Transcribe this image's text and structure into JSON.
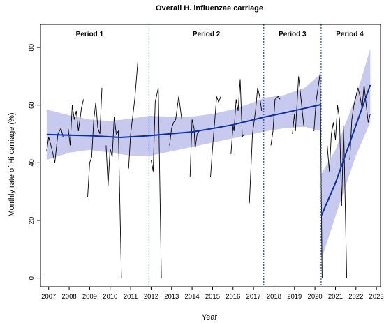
{
  "chart_data": {
    "type": "line",
    "title": "Overall H. influenzae carriage",
    "xlabel": "Year",
    "ylabel": "Monthly rate of Hi carriage (%)",
    "xlim": [
      2006.6,
      2023.2
    ],
    "ylim": [
      -3,
      88
    ],
    "x_ticks": [
      2007,
      2008,
      2009,
      2010,
      2011,
      2012,
      2013,
      2014,
      2015,
      2016,
      2017,
      2018,
      2019,
      2020,
      2021,
      2022,
      2023
    ],
    "y_ticks": [
      0,
      20,
      40,
      60,
      80
    ],
    "grid": false,
    "period_breaks": [
      2011.9,
      2017.5,
      2020.3
    ],
    "periods": [
      {
        "label": "Period 1",
        "x": 2009.0
      },
      {
        "label": "Period 2",
        "x": 2014.7
      },
      {
        "label": "Period 3",
        "x": 2018.9
      },
      {
        "label": "Period 4",
        "x": 2021.7
      }
    ],
    "observed_segments": [
      [
        [
          2006.9,
          44
        ],
        [
          2007.0,
          49
        ],
        [
          2007.15,
          45
        ],
        [
          2007.3,
          40
        ],
        [
          2007.45,
          50
        ],
        [
          2007.6,
          52
        ],
        [
          2007.7,
          49
        ]
      ],
      [
        [
          2007.95,
          52
        ],
        [
          2008.05,
          46
        ],
        [
          2008.15,
          60
        ],
        [
          2008.25,
          55
        ],
        [
          2008.35,
          58
        ],
        [
          2008.45,
          51
        ],
        [
          2008.6,
          59
        ],
        [
          2008.7,
          62
        ]
      ],
      [
        [
          2008.9,
          28
        ],
        [
          2009.0,
          40
        ],
        [
          2009.1,
          42
        ],
        [
          2009.2,
          55
        ],
        [
          2009.3,
          61
        ],
        [
          2009.4,
          52
        ],
        [
          2009.5,
          50
        ],
        [
          2009.6,
          66
        ]
      ],
      [
        [
          2009.8,
          46
        ],
        [
          2009.9,
          32
        ],
        [
          2010.0,
          45
        ],
        [
          2010.1,
          42
        ],
        [
          2010.2,
          56
        ],
        [
          2010.3,
          50
        ],
        [
          2010.4,
          51
        ],
        [
          2010.55,
          0
        ]
      ],
      [
        [
          2010.9,
          38
        ],
        [
          2011.0,
          50
        ],
        [
          2011.2,
          62
        ],
        [
          2011.35,
          75
        ]
      ],
      [
        [
          2012.0,
          41
        ],
        [
          2012.1,
          37
        ],
        [
          2012.2,
          61
        ],
        [
          2012.35,
          66
        ],
        [
          2012.5,
          0
        ]
      ],
      [
        [
          2012.9,
          46
        ],
        [
          2013.0,
          52
        ],
        [
          2013.1,
          54
        ],
        [
          2013.2,
          55
        ],
        [
          2013.35,
          63
        ],
        [
          2013.5,
          55
        ]
      ],
      [
        [
          2013.9,
          35
        ],
        [
          2014.0,
          55
        ],
        [
          2014.1,
          52
        ],
        [
          2014.15,
          45
        ],
        [
          2014.25,
          50
        ],
        [
          2014.35,
          51
        ]
      ],
      [
        [
          2014.9,
          35
        ],
        [
          2015.0,
          45
        ],
        [
          2015.1,
          54
        ],
        [
          2015.2,
          63
        ],
        [
          2015.3,
          61
        ],
        [
          2015.4,
          63
        ]
      ],
      [
        [
          2015.9,
          43
        ],
        [
          2016.0,
          53
        ],
        [
          2016.05,
          51
        ],
        [
          2016.15,
          62
        ],
        [
          2016.25,
          58
        ],
        [
          2016.35,
          69
        ],
        [
          2016.45,
          49
        ],
        [
          2016.55,
          50
        ]
      ],
      [
        [
          2016.8,
          26
        ],
        [
          2016.95,
          50
        ],
        [
          2017.1,
          58
        ],
        [
          2017.2,
          66
        ],
        [
          2017.3,
          63
        ],
        [
          2017.4,
          58
        ]
      ],
      [
        [
          2017.85,
          46
        ],
        [
          2017.95,
          51
        ],
        [
          2018.05,
          62
        ],
        [
          2018.2,
          63
        ],
        [
          2018.3,
          62
        ]
      ],
      [
        [
          2018.9,
          50
        ],
        [
          2019.0,
          57
        ],
        [
          2019.05,
          51
        ],
        [
          2019.2,
          70
        ],
        [
          2019.35,
          60
        ],
        [
          2019.45,
          53
        ]
      ],
      [
        [
          2019.95,
          51
        ],
        [
          2020.05,
          61
        ],
        [
          2020.15,
          66
        ],
        [
          2020.25,
          71
        ],
        [
          2020.35,
          0
        ]
      ],
      [
        [
          2020.6,
          46
        ],
        [
          2020.7,
          37
        ],
        [
          2020.8,
          50
        ],
        [
          2020.9,
          54
        ],
        [
          2021.0,
          48
        ],
        [
          2021.1,
          60
        ],
        [
          2021.2,
          55
        ],
        [
          2021.3,
          25
        ],
        [
          2021.4,
          53
        ],
        [
          2021.55,
          0
        ]
      ],
      [
        [
          2021.7,
          41
        ],
        [
          2021.8,
          55
        ],
        [
          2021.9,
          60
        ],
        [
          2022.0,
          63
        ],
        [
          2022.1,
          66
        ],
        [
          2022.2,
          63
        ],
        [
          2022.3,
          59
        ],
        [
          2022.4,
          67
        ],
        [
          2022.5,
          60
        ],
        [
          2022.6,
          54
        ],
        [
          2022.7,
          57
        ]
      ]
    ],
    "fitted_segments": [
      [
        [
          2006.9,
          49.8
        ],
        [
          2008.0,
          49.6
        ],
        [
          2009.0,
          49.4
        ],
        [
          2010.0,
          49.0
        ],
        [
          2010.5,
          48.8
        ],
        [
          2011.9,
          49.4
        ]
      ],
      [
        [
          2011.9,
          49.4
        ],
        [
          2013.0,
          50.1
        ],
        [
          2014.0,
          50.7
        ],
        [
          2015.0,
          51.9
        ],
        [
          2016.0,
          53.2
        ],
        [
          2017.5,
          55.8
        ]
      ],
      [
        [
          2017.5,
          55.8
        ],
        [
          2018.5,
          57.3
        ],
        [
          2019.5,
          58.9
        ],
        [
          2020.3,
          60.2
        ]
      ],
      [
        [
          2020.3,
          21.5
        ],
        [
          2021.0,
          33.0
        ],
        [
          2022.0,
          53.0
        ],
        [
          2022.7,
          67.0
        ]
      ]
    ],
    "ci_bands": [
      {
        "upper": [
          [
            2006.9,
            58.5
          ],
          [
            2008.0,
            56.5
          ],
          [
            2009.0,
            55.0
          ],
          [
            2010.0,
            54.5
          ],
          [
            2011.0,
            55.3
          ],
          [
            2011.9,
            56.3
          ],
          [
            2013.0,
            56.0
          ],
          [
            2014.0,
            56.0
          ],
          [
            2015.0,
            57.0
          ],
          [
            2016.0,
            58.5
          ],
          [
            2017.0,
            61.0
          ],
          [
            2017.5,
            62.5
          ],
          [
            2018.5,
            63.5
          ],
          [
            2019.5,
            66.0
          ],
          [
            2020.3,
            71.0
          ]
        ],
        "lower": [
          [
            2006.9,
            41.0
          ],
          [
            2008.0,
            43.5
          ],
          [
            2009.0,
            44.5
          ],
          [
            2010.0,
            43.5
          ],
          [
            2011.0,
            42.5
          ],
          [
            2011.9,
            42.3
          ],
          [
            2013.0,
            44.0
          ],
          [
            2014.0,
            45.5
          ],
          [
            2015.0,
            47.0
          ],
          [
            2016.0,
            48.5
          ],
          [
            2017.0,
            50.0
          ],
          [
            2017.5,
            50.8
          ],
          [
            2018.5,
            52.0
          ],
          [
            2019.5,
            52.5
          ],
          [
            2020.3,
            51.0
          ]
        ]
      },
      {
        "upper": [
          [
            2020.3,
            36.0
          ],
          [
            2021.0,
            44.5
          ],
          [
            2022.0,
            63.0
          ],
          [
            2022.7,
            79.5
          ]
        ],
        "lower": [
          [
            2020.3,
            6.0
          ],
          [
            2021.0,
            21.5
          ],
          [
            2022.0,
            42.5
          ],
          [
            2022.7,
            54.0
          ]
        ]
      }
    ],
    "colors": {
      "fit": "#0b2fa8",
      "band": "#c8c9ef",
      "observed": "#000000",
      "break_line": "#2445b0"
    }
  }
}
